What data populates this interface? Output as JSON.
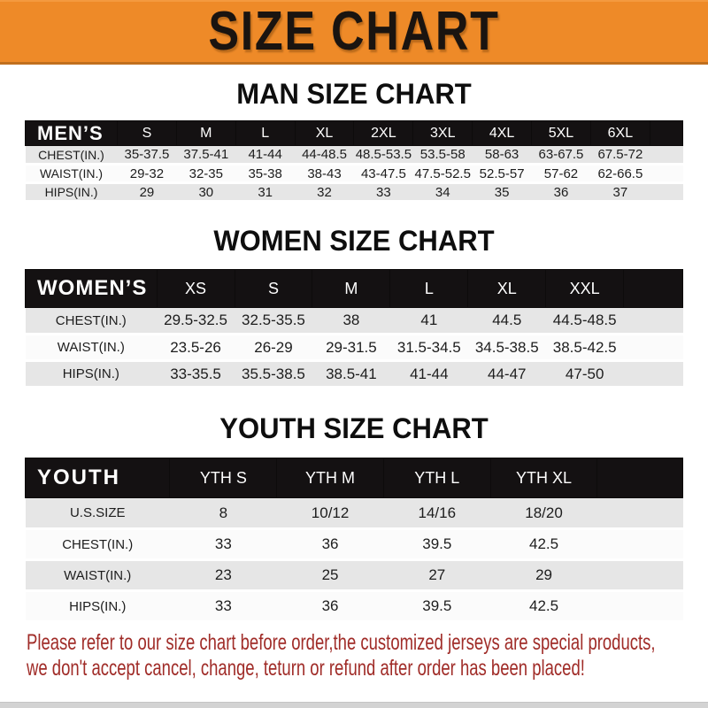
{
  "banner": {
    "title": "SIZE CHART"
  },
  "sections": [
    {
      "id": "men",
      "heading": "MAN SIZE CHART",
      "header_label": "MEN’S",
      "columns": [
        "S",
        "M",
        "L",
        "XL",
        "2XL",
        "3XL",
        "4XL",
        "5XL",
        "6XL"
      ],
      "rows": [
        {
          "label": "CHEST(IN.)",
          "values": [
            "35-37.5",
            "37.5-41",
            "41-44",
            "44-48.5",
            "48.5-53.5",
            "53.5-58",
            "58-63",
            "63-67.5",
            "67.5-72"
          ]
        },
        {
          "label": "WAIST(IN.)",
          "values": [
            "29-32",
            "32-35",
            "35-38",
            "38-43",
            "43-47.5",
            "47.5-52.5",
            "52.5-57",
            "57-62",
            "62-66.5"
          ]
        },
        {
          "label": "HIPS(IN.)",
          "values": [
            "29",
            "30",
            "31",
            "32",
            "33",
            "34",
            "35",
            "36",
            "37"
          ]
        }
      ]
    },
    {
      "id": "women",
      "heading": "WOMEN SIZE CHART",
      "header_label": "WOMEN’S",
      "columns": [
        "XS",
        "S",
        "M",
        "L",
        "XL",
        "XXL"
      ],
      "rows": [
        {
          "label": "CHEST(IN.)",
          "values": [
            "29.5-32.5",
            "32.5-35.5",
            "38",
            "41",
            "44.5",
            "44.5-48.5"
          ]
        },
        {
          "label": "WAIST(IN.)",
          "values": [
            "23.5-26",
            "26-29",
            "29-31.5",
            "31.5-34.5",
            "34.5-38.5",
            "38.5-42.5"
          ]
        },
        {
          "label": "HIPS(IN.)",
          "values": [
            "33-35.5",
            "35.5-38.5",
            "38.5-41",
            "41-44",
            "44-47",
            "47-50"
          ]
        }
      ]
    },
    {
      "id": "youth",
      "heading": "YOUTH SIZE CHART",
      "header_label": "YOUTH",
      "columns": [
        "YTH S",
        "YTH M",
        "YTH L",
        "YTH XL"
      ],
      "rows": [
        {
          "label": "U.S.SIZE",
          "values": [
            "8",
            "10/12",
            "14/16",
            "18/20"
          ]
        },
        {
          "label": "CHEST(IN.)",
          "values": [
            "33",
            "36",
            "39.5",
            "42.5"
          ]
        },
        {
          "label": "WAIST(IN.)",
          "values": [
            "23",
            "25",
            "27",
            "29"
          ]
        },
        {
          "label": "HIPS(IN.)",
          "values": [
            "33",
            "36",
            "39.5",
            "42.5"
          ]
        }
      ]
    }
  ],
  "footer_note": {
    "line1": "Please refer to our size chart before order,the customized jerseys are special products,",
    "line2": "we don't accept cancel, change, teturn or refund after order has been placed!"
  },
  "colors": {
    "banner-orange": "#ee8a28",
    "bar-black": "#141112",
    "note-red": "#a02c28"
  }
}
